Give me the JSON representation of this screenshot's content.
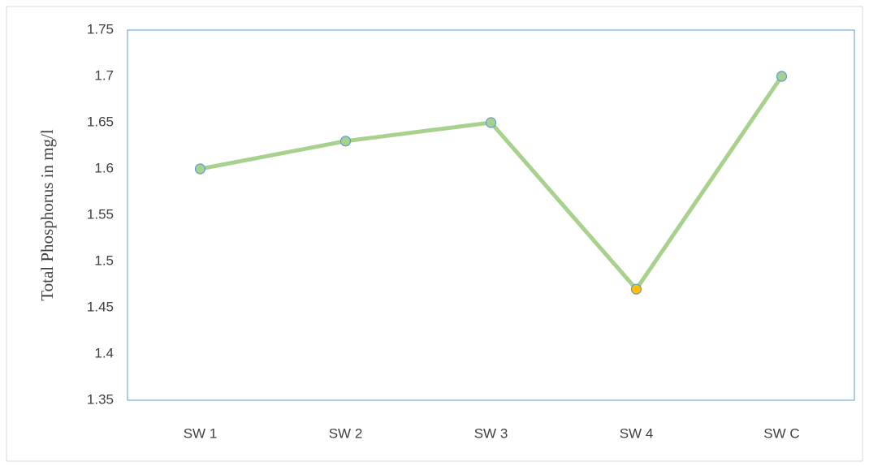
{
  "chart_data": {
    "type": "line",
    "y_label": "Total Phosphorus in mg/l",
    "categories": [
      "SW 1",
      "SW 2",
      "SW 3",
      "SW 4",
      "SW C"
    ],
    "values": [
      1.6,
      1.63,
      1.65,
      1.47,
      1.7
    ],
    "color": "#a9d18e",
    "marker_edge_color": "#5b9bd5",
    "point_colors": [
      "#a9d18e",
      "#a9d18e",
      "#a9d18e",
      "#ffc000",
      "#a9d18e"
    ],
    "ylim": [
      1.35,
      1.75
    ],
    "yticks": [
      1.35,
      1.4,
      1.45,
      1.5,
      1.55,
      1.6,
      1.65,
      1.7,
      1.75
    ],
    "grid": false
  }
}
